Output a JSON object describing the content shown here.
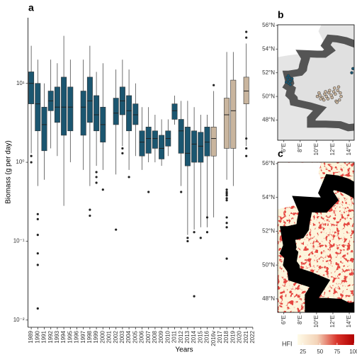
{
  "chart_data": {
    "type": "boxplot",
    "panel": "a",
    "xlabel": "Years",
    "ylabel": "Biomass (g per day)",
    "log": true,
    "ylim": [
      0.0081,
      68
    ],
    "yticks": [
      {
        "value": 10,
        "label": "10¹"
      },
      {
        "value": 1,
        "label": "10⁰"
      },
      {
        "value": 0.1,
        "label": "10⁻¹"
      },
      {
        "value": 0.01,
        "label": "10⁻²"
      }
    ],
    "categories": [
      "1989",
      "1990",
      "1991",
      "1992",
      "1993",
      "1994",
      "1995",
      "1996",
      "1997",
      "1998",
      "1999",
      "2000",
      "2001",
      "2002",
      "2003",
      "2004",
      "2005",
      "2006",
      "2007",
      "2008",
      "2009",
      "2010",
      "2011",
      "2012",
      "2013",
      "2014",
      "2015",
      "2016",
      "2016v",
      "2017",
      "2018",
      "2019",
      "2020",
      "2021",
      "2022"
    ],
    "boxes": [
      {
        "color": "#1b5670",
        "lo": 1.3,
        "q1": 5.5,
        "med": 10,
        "q3": 14,
        "hi": 30,
        "outliers": [
          1.2,
          1.0
        ]
      },
      {
        "color": "#1b5670",
        "lo": 0.5,
        "q1": 2.5,
        "med": 5.5,
        "q3": 10,
        "hi": 20,
        "outliers": [
          0.22,
          0.19,
          0.12,
          0.07,
          0.05,
          0.014
        ]
      },
      {
        "color": "#1b5670",
        "lo": 0.6,
        "q1": 1.4,
        "med": 3,
        "q3": 5,
        "hi": 10,
        "outliers": []
      },
      {
        "color": "#1b5670",
        "lo": 1.5,
        "q1": 4.5,
        "med": 6,
        "q3": 8,
        "hi": 20,
        "outliers": []
      },
      {
        "color": "#1b5670",
        "lo": 1.2,
        "q1": 3.2,
        "med": 5,
        "q3": 9,
        "hi": 18,
        "outliers": []
      },
      {
        "color": "#1b5670",
        "lo": 0.28,
        "q1": 2.2,
        "med": 5,
        "q3": 12,
        "hi": 40,
        "outliers": []
      },
      {
        "color": "#1b5670",
        "lo": 1.0,
        "q1": 2.5,
        "med": 5,
        "q3": 9,
        "hi": 20,
        "outliers": []
      },
      null,
      {
        "color": "#1b5670",
        "lo": 0.8,
        "q1": 2.2,
        "med": 5,
        "q3": 8,
        "hi": 20,
        "outliers": []
      },
      {
        "color": "#1b5670",
        "lo": 0.5,
        "q1": 3.2,
        "med": 6,
        "q3": 12,
        "hi": 30,
        "outliers": [
          0.25,
          0.21
        ]
      },
      {
        "color": "#1b5670",
        "lo": 0.9,
        "q1": 2.5,
        "med": 4,
        "q3": 7,
        "hi": 14,
        "outliers": [
          0.75,
          0.65,
          0.55
        ]
      },
      {
        "color": "#1b5670",
        "lo": 0.8,
        "q1": 1.8,
        "med": 3,
        "q3": 5,
        "hi": 18,
        "outliers": [
          0.45
        ]
      },
      null,
      {
        "color": "#1b5670",
        "lo": 0.7,
        "q1": 3,
        "med": 4.2,
        "q3": 6.5,
        "hi": 15,
        "outliers": [
          0.14
        ]
      },
      {
        "color": "#1b5670",
        "lo": 1.6,
        "q1": 4,
        "med": 6,
        "q3": 9,
        "hi": 20,
        "outliers": [
          1.5,
          1.3
        ]
      },
      {
        "color": "#1b5670",
        "lo": 0.8,
        "q1": 2.5,
        "med": 4.5,
        "q3": 7,
        "hi": 15,
        "outliers": [
          0.65
        ]
      },
      {
        "color": "#1b5670",
        "lo": 1.2,
        "q1": 3,
        "med": 4,
        "q3": 5.5,
        "hi": 10,
        "outliers": []
      },
      {
        "color": "#1b5670",
        "lo": 0.8,
        "q1": 1.2,
        "med": 1.8,
        "q3": 2.5,
        "hi": 5,
        "outliers": []
      },
      {
        "color": "#1b5670",
        "lo": 1.0,
        "q1": 1.3,
        "med": 2,
        "q3": 2.8,
        "hi": 5,
        "outliers": [
          0.42
        ]
      },
      {
        "color": "#1b5670",
        "lo": 1.0,
        "q1": 1.5,
        "med": 2,
        "q3": 2.5,
        "hi": 4,
        "outliers": []
      },
      {
        "color": "#1b5670",
        "lo": 0.9,
        "q1": 1.1,
        "med": 1.5,
        "q3": 2.2,
        "hi": 3.5,
        "outliers": []
      },
      {
        "color": "#1b5670",
        "lo": 1.2,
        "q1": 1.6,
        "med": 2,
        "q3": 2.5,
        "hi": 3.5,
        "outliers": []
      },
      {
        "color": "#1b5670",
        "lo": 3,
        "q1": 3.5,
        "med": 4.5,
        "q3": 5.5,
        "hi": 7,
        "outliers": []
      },
      {
        "color": "#1b5670",
        "lo": 0.5,
        "q1": 1.3,
        "med": 2.5,
        "q3": 3.5,
        "hi": 6,
        "outliers": [
          0.42
        ]
      },
      {
        "color": "#1b5670",
        "lo": 0.12,
        "q1": 0.9,
        "med": 1.3,
        "q3": 2.8,
        "hi": 6,
        "outliers": [
          0.1,
          0.11
        ]
      },
      {
        "color": "#1b5670",
        "lo": 0.14,
        "q1": 1.0,
        "med": 1.7,
        "q3": 2.5,
        "hi": 5,
        "outliers": [
          0.13,
          0.02
        ]
      },
      {
        "color": "#1b5670",
        "lo": 0.15,
        "q1": 1.0,
        "med": 1.6,
        "q3": 2.4,
        "hi": 4,
        "outliers": [
          0.11
        ]
      },
      {
        "color": "#1b5670",
        "lo": 0.15,
        "q1": 1.2,
        "med": 1.8,
        "q3": 2.8,
        "hi": 4,
        "outliers": [
          0.2,
          0.13
        ]
      },
      {
        "color": "#c9b59e",
        "lo": 0.2,
        "q1": 1.2,
        "med": 2,
        "q3": 2.8,
        "hi": 8,
        "outliers": [
          9.5
        ]
      },
      null,
      {
        "color": "#c9b59e",
        "lo": 0.6,
        "q1": 1.5,
        "med": 4,
        "q3": 6.5,
        "hi": 25,
        "outliers": [
          0.45,
          0.42,
          0.4,
          0.38,
          0.35,
          0.33,
          0.2,
          0.17,
          0.15,
          0.06
        ]
      },
      {
        "color": "#c9b59e",
        "lo": 0.5,
        "q1": 1.5,
        "med": 4.5,
        "q3": 11,
        "hi": 25,
        "outliers": []
      },
      null,
      {
        "color": "#c9b59e",
        "lo": 1.6,
        "q1": 5.5,
        "med": 8,
        "q3": 12,
        "hi": 32,
        "outliers": [
          2.0,
          1.5,
          1.2,
          38,
          45
        ]
      },
      null
    ]
  },
  "map_b": {
    "panel": "b",
    "xlim": [
      5.25,
      14.6
    ],
    "ylim": [
      46.3,
      56.05
    ],
    "xticks": [
      {
        "value": 6,
        "label": "6°E"
      },
      {
        "value": 8,
        "label": "8°E"
      },
      {
        "value": 10,
        "label": "10°E"
      },
      {
        "value": 12,
        "label": "12°E"
      },
      {
        "value": 14,
        "label": "14°E"
      }
    ],
    "yticks": [
      {
        "value": 48,
        "label": "48°N"
      },
      {
        "value": 50,
        "label": "50°N"
      },
      {
        "value": 52,
        "label": "52°N"
      },
      {
        "value": 54,
        "label": "54°N"
      },
      {
        "value": 56,
        "label": "56°N"
      }
    ],
    "sites": [
      {
        "color": "#1b5670",
        "lon": [
          6.3,
          6.5,
          6.7,
          6.6,
          6.9,
          6.4,
          6.8,
          7.0,
          6.55,
          6.75,
          14.3,
          14.45
        ],
        "lat": [
          51.2,
          51.4,
          51.6,
          51.1,
          51.3,
          51.6,
          51.0,
          51.5,
          51.75,
          51.25,
          52.0,
          52.35
        ]
      },
      {
        "color": "#c9b59e",
        "lon": [
          10.1,
          10.4,
          10.7,
          11.0,
          11.2,
          11.5,
          11.8,
          12.1,
          12.3,
          12.6,
          12.9,
          10.5,
          10.9,
          11.4,
          11.9,
          12.4,
          12.8,
          11.1,
          11.6,
          12.2,
          12.7,
          10.3,
          13.0,
          12.5
        ],
        "lat": [
          50.0,
          50.1,
          49.9,
          50.2,
          50.0,
          50.3,
          50.1,
          50.4,
          50.2,
          50.5,
          50.3,
          49.8,
          49.7,
          49.8,
          49.9,
          49.6,
          49.7,
          50.4,
          50.5,
          50.7,
          50.8,
          50.3,
          50.0,
          49.5
        ]
      }
    ]
  },
  "map_c": {
    "panel": "c",
    "xlim": [
      5.25,
      14.6
    ],
    "ylim": [
      47.2,
      56.08
    ],
    "xticks": [
      {
        "value": 6,
        "label": "6°E"
      },
      {
        "value": 8,
        "label": "8°E"
      },
      {
        "value": 10,
        "label": "10°E"
      },
      {
        "value": 12,
        "label": "12°E"
      },
      {
        "value": 14,
        "label": "14°E"
      }
    ],
    "yticks": [
      {
        "value": 48,
        "label": "48°N"
      },
      {
        "value": 50,
        "label": "50°N"
      },
      {
        "value": 52,
        "label": "52°N"
      },
      {
        "value": 54,
        "label": "54°N"
      },
      {
        "value": 56,
        "label": "56°N"
      }
    ],
    "legend": {
      "title": "HFI",
      "range": [
        17,
        100
      ],
      "ticks": [
        25,
        50,
        75,
        100
      ]
    }
  }
}
